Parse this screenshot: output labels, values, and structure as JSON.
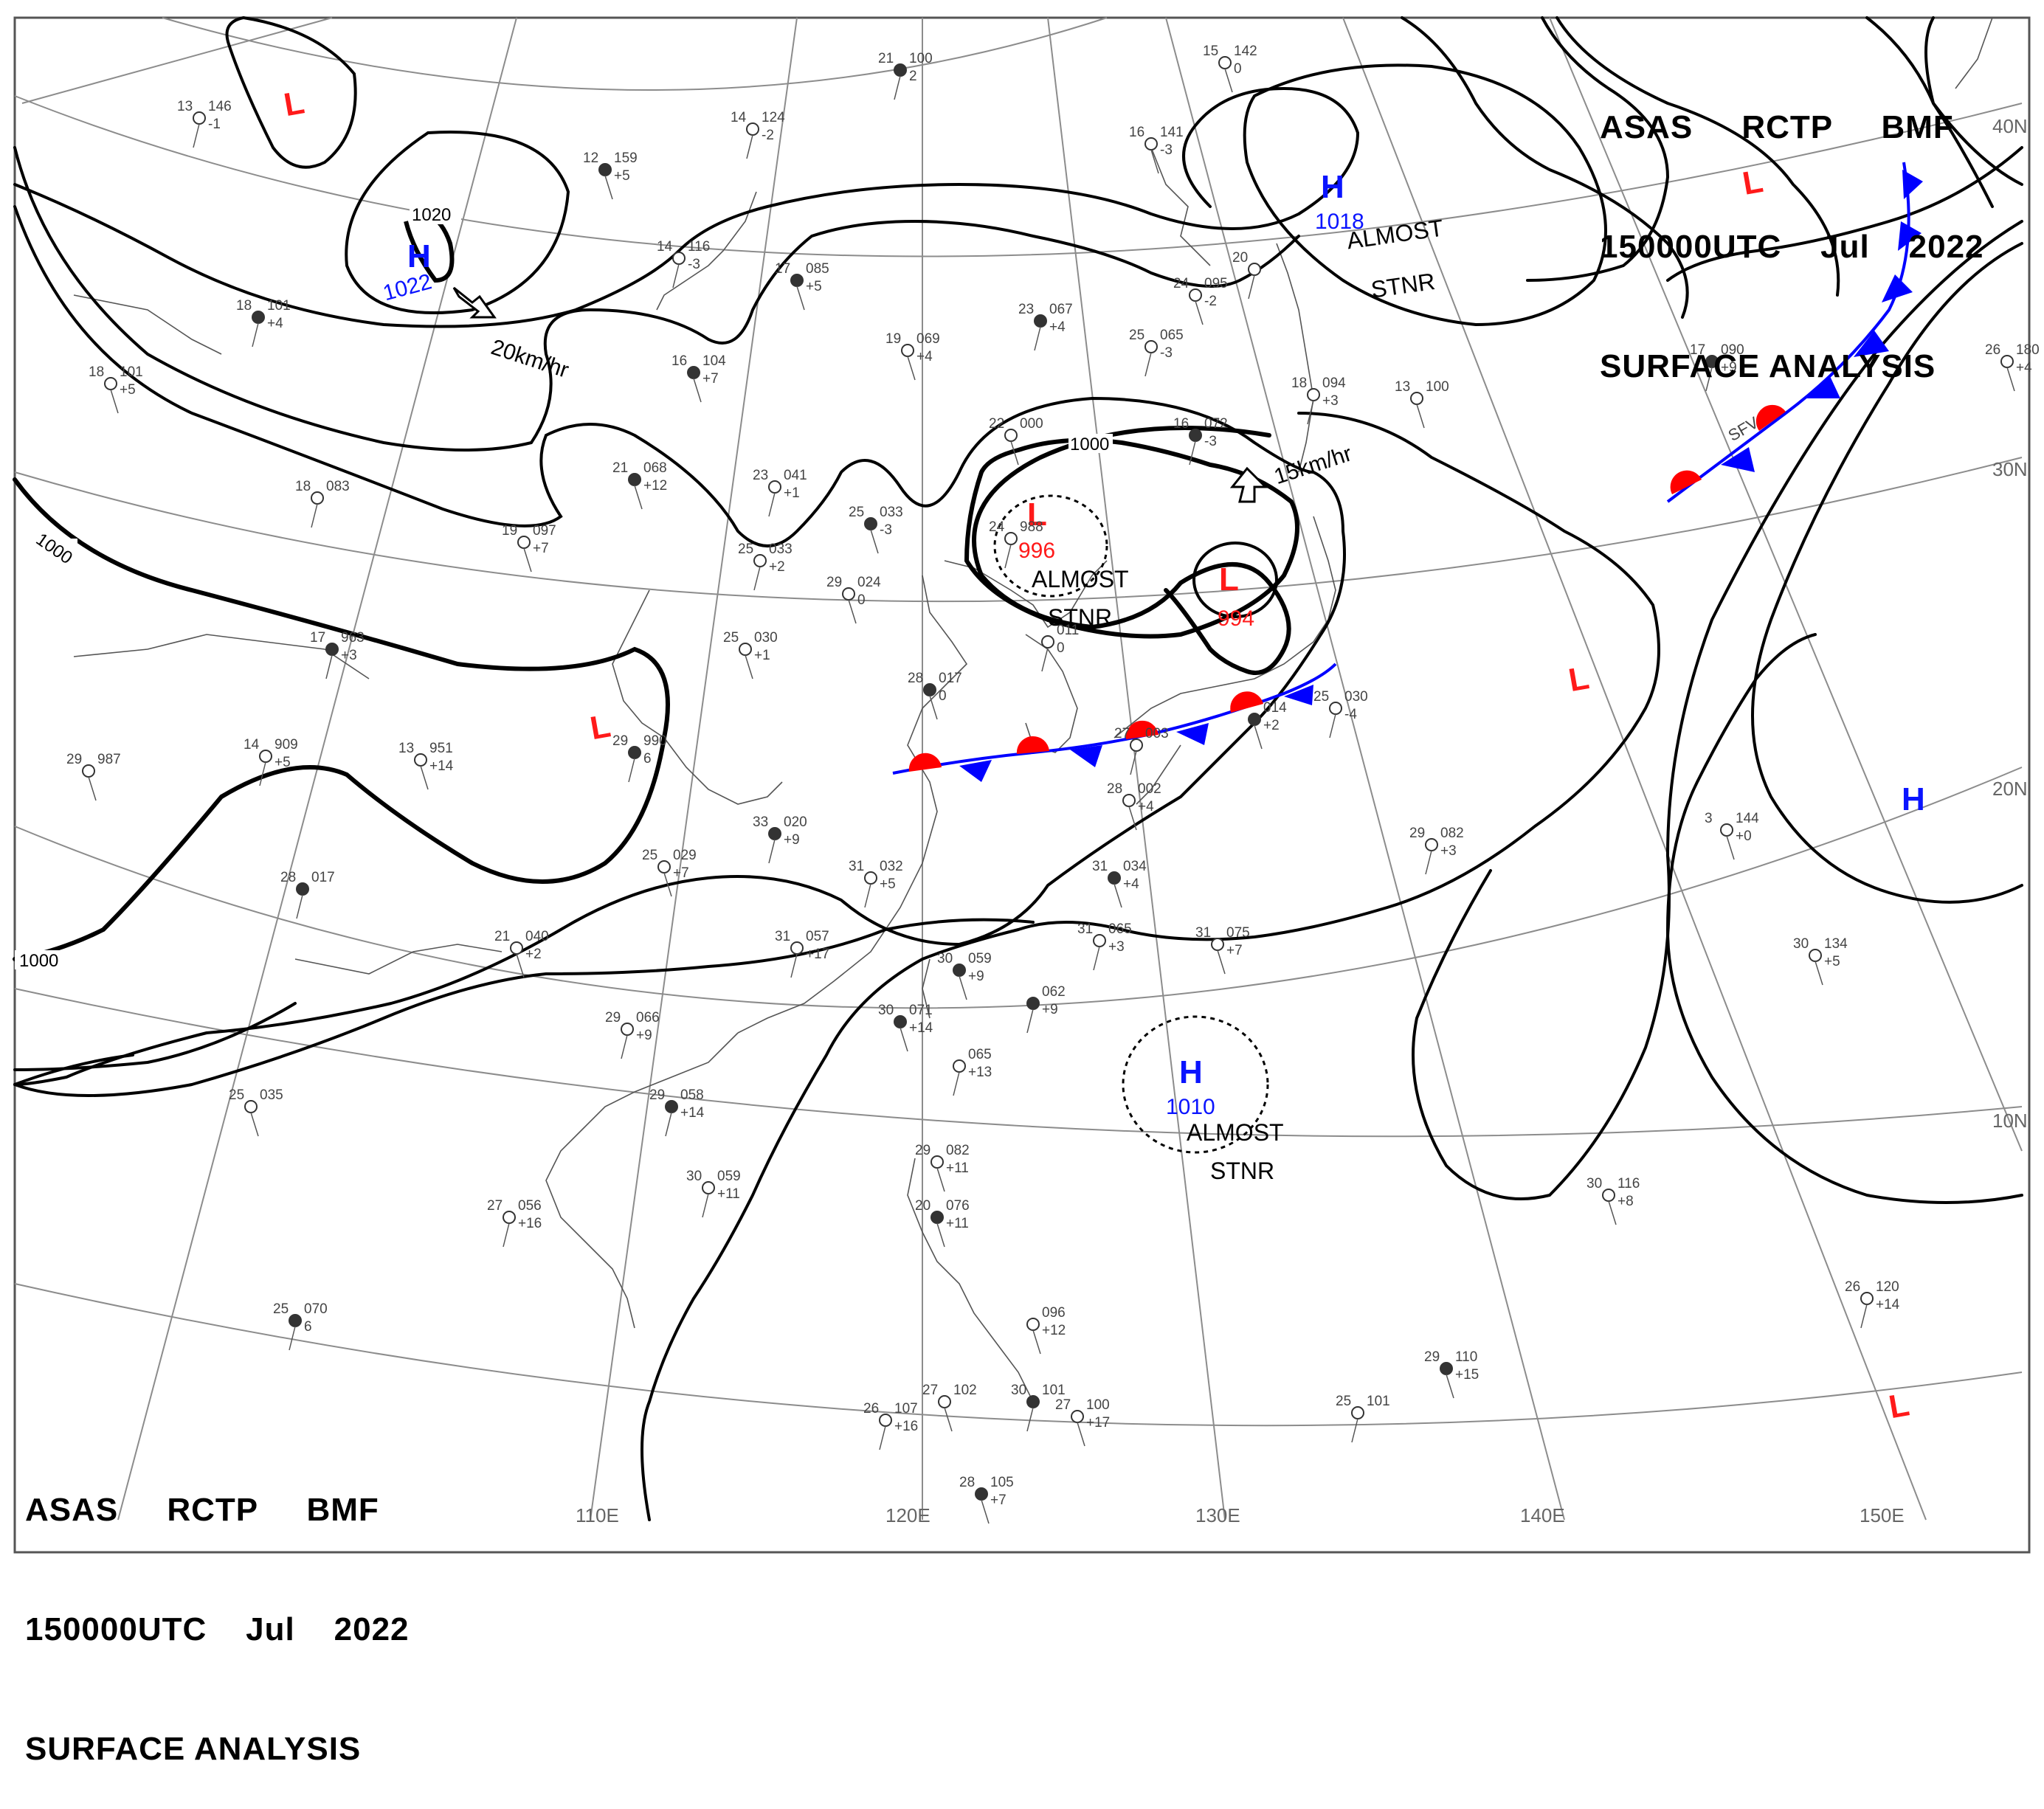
{
  "header": {
    "line1": "ASAS     RCTP     BMF",
    "line2": "150000UTC    Jul    2022",
    "line3": "SURFACE ANALYSIS"
  },
  "colors": {
    "high": "#0a14ff",
    "low": "#ff1a1a",
    "front_warm": "#ff0000",
    "front_cold": "#0000ff",
    "isobar": "#000000",
    "grid": "#8c8c8c"
  },
  "grid_labels": {
    "lon": [
      "110E",
      "120E",
      "130E",
      "140E",
      "150E"
    ],
    "lat": [
      "40N",
      "30N",
      "20N",
      "10N"
    ]
  },
  "isobar_labels": [
    "1000",
    "1000",
    "1000",
    "1020"
  ],
  "systems": [
    {
      "type": "H",
      "pressure": "1022",
      "note": ""
    },
    {
      "type": "H",
      "pressure": "1018",
      "note": "ALMOST STNR"
    },
    {
      "type": "H",
      "pressure": "1010",
      "note": "ALMOST STNR"
    },
    {
      "type": "H",
      "pressure": "",
      "note": ""
    },
    {
      "type": "L",
      "pressure": "996",
      "note": "ALMOST STNR"
    },
    {
      "type": "L",
      "pressure": "994",
      "note": ""
    },
    {
      "type": "L",
      "pressure": "",
      "note": ""
    }
  ],
  "motion_labels": [
    "20km/hr",
    "15km/hr"
  ],
  "almost_stnr": [
    "ALMOST",
    "STNR"
  ],
  "front_label": "SFV",
  "stations": [
    {
      "t": "21",
      "p": "100",
      "d": "2"
    },
    {
      "t": "15",
      "p": "142",
      "d": "0"
    },
    {
      "t": "14",
      "p": "124",
      "d": "-2"
    },
    {
      "t": "12",
      "p": "159",
      "d": "+5"
    },
    {
      "t": "13",
      "p": "146",
      "d": "-1"
    },
    {
      "t": "16",
      "p": "141",
      "d": "-3"
    },
    {
      "t": "18",
      "p": "101",
      "d": "+4"
    },
    {
      "t": "18",
      "p": "101",
      "d": "+5"
    },
    {
      "t": "14",
      "p": "116",
      "d": "-3"
    },
    {
      "t": "17",
      "p": "085",
      "d": "+5"
    },
    {
      "t": "20",
      "p": "",
      "d": ""
    },
    {
      "t": "24",
      "p": "095",
      "d": "-2"
    },
    {
      "t": "23",
      "p": "067",
      "d": "+4"
    },
    {
      "t": "19",
      "p": "069",
      "d": "+4"
    },
    {
      "t": "25",
      "p": "065",
      "d": "-3"
    },
    {
      "t": "16",
      "p": "104",
      "d": "+7"
    },
    {
      "t": "18",
      "p": "094",
      "d": "+3"
    },
    {
      "t": "13",
      "p": "100",
      "d": ""
    },
    {
      "t": "17",
      "p": "090",
      "d": "+9"
    },
    {
      "t": "26",
      "p": "180",
      "d": "+4"
    },
    {
      "t": "18",
      "p": "083",
      "d": ""
    },
    {
      "t": "21",
      "p": "068",
      "d": "+12"
    },
    {
      "t": "23",
      "p": "041",
      "d": "+1"
    },
    {
      "t": "22",
      "p": "000",
      "d": ""
    },
    {
      "t": "16",
      "p": "072",
      "d": "-3"
    },
    {
      "t": "19",
      "p": "097",
      "d": "+7"
    },
    {
      "t": "25",
      "p": "033",
      "d": "+2"
    },
    {
      "t": "25",
      "p": "033",
      "d": "-3"
    },
    {
      "t": "24",
      "p": "988",
      "d": ""
    },
    {
      "t": "29",
      "p": "024",
      "d": "0"
    },
    {
      "t": "17",
      "p": "963",
      "d": "+3"
    },
    {
      "t": "25",
      "p": "030",
      "d": "+1"
    },
    {
      "t": "",
      "p": "011",
      "d": "0"
    },
    {
      "t": "28",
      "p": "017",
      "d": "0"
    },
    {
      "t": "14",
      "p": "909",
      "d": "+5"
    },
    {
      "t": "13",
      "p": "951",
      "d": "+14"
    },
    {
      "t": "29",
      "p": "990",
      "d": "6"
    },
    {
      "t": "29",
      "p": "987",
      "d": ""
    },
    {
      "t": "27",
      "p": "003",
      "d": ""
    },
    {
      "t": "",
      "p": "014",
      "d": "+2"
    },
    {
      "t": "25",
      "p": "030",
      "d": "-4"
    },
    {
      "t": "28",
      "p": "002",
      "d": "+4"
    },
    {
      "t": "33",
      "p": "020",
      "d": "+9"
    },
    {
      "t": "25",
      "p": "029",
      "d": "+7"
    },
    {
      "t": "31",
      "p": "032",
      "d": "+5"
    },
    {
      "t": "31",
      "p": "034",
      "d": "+4"
    },
    {
      "t": "29",
      "p": "082",
      "d": "+3"
    },
    {
      "t": "3",
      "p": "144",
      "d": "+0"
    },
    {
      "t": "28",
      "p": "017",
      "d": ""
    },
    {
      "t": "21",
      "p": "040",
      "d": "+2"
    },
    {
      "t": "31",
      "p": "057",
      "d": "+17"
    },
    {
      "t": "30",
      "p": "059",
      "d": "+9"
    },
    {
      "t": "31",
      "p": "065",
      "d": "+3"
    },
    {
      "t": "31",
      "p": "075",
      "d": "+7"
    },
    {
      "t": "",
      "p": "062",
      "d": "+9"
    },
    {
      "t": "30",
      "p": "134",
      "d": "+5"
    },
    {
      "t": "29",
      "p": "066",
      "d": "+9"
    },
    {
      "t": "30",
      "p": "071",
      "d": "+14"
    },
    {
      "t": "",
      "p": "065",
      "d": "+13"
    },
    {
      "t": "25",
      "p": "035",
      "d": ""
    },
    {
      "t": "29",
      "p": "058",
      "d": "+14"
    },
    {
      "t": "29",
      "p": "082",
      "d": "+11"
    },
    {
      "t": "30",
      "p": "059",
      "d": "+11"
    },
    {
      "t": "20",
      "p": "076",
      "d": "+11"
    },
    {
      "t": "27",
      "p": "056",
      "d": "+16"
    },
    {
      "t": "30",
      "p": "116",
      "d": "+8"
    },
    {
      "t": "25",
      "p": "070",
      "d": "6"
    },
    {
      "t": "",
      "p": "096",
      "d": "+12"
    },
    {
      "t": "26",
      "p": "120",
      "d": "+14"
    },
    {
      "t": "29",
      "p": "110",
      "d": "+15"
    },
    {
      "t": "26",
      "p": "107",
      "d": "+16"
    },
    {
      "t": "27",
      "p": "102",
      "d": ""
    },
    {
      "t": "30",
      "p": "101",
      "d": ""
    },
    {
      "t": "27",
      "p": "100",
      "d": "+17"
    },
    {
      "t": "25",
      "p": "101",
      "d": ""
    },
    {
      "t": "28",
      "p": "105",
      "d": "+7"
    }
  ]
}
